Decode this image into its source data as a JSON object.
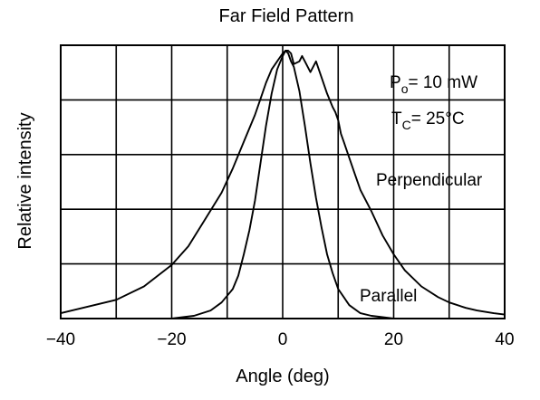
{
  "chart_data": {
    "type": "line",
    "title": "Far Field Pattern",
    "xlabel": "Angle (deg)",
    "ylabel": "Relative intensity",
    "xlim": [
      -40,
      40
    ],
    "ylim": [
      0,
      1.0
    ],
    "x_ticks": [
      -40,
      -20,
      0,
      20,
      40
    ],
    "x_tick_labels": [
      "−40",
      "−20",
      "0",
      "20",
      "40"
    ],
    "grid": true,
    "annotations": {
      "power_symbol": "P",
      "power_subscript": "o",
      "power_value": "= 10 mW",
      "temp_symbol": "T",
      "temp_subscript": "C",
      "temp_value": "= 25°C"
    },
    "series": [
      {
        "name": "Perpendicular",
        "x": [
          -40,
          -35,
          -30,
          -25,
          -20,
          -17,
          -14,
          -11,
          -9,
          -7,
          -5,
          -4,
          -3,
          -2,
          -1,
          0,
          0.5,
          1,
          1.5,
          2,
          3,
          3.5,
          4,
          5,
          6,
          7,
          8,
          9,
          9.5,
          10,
          10.5,
          11,
          12,
          13,
          14,
          16,
          18,
          20,
          22,
          25,
          28,
          30,
          33,
          35,
          38,
          40
        ],
        "y": [
          0.02,
          0.045,
          0.07,
          0.12,
          0.2,
          0.27,
          0.37,
          0.47,
          0.56,
          0.66,
          0.76,
          0.82,
          0.88,
          0.93,
          0.96,
          0.99,
          1.0,
          1.0,
          0.99,
          0.95,
          0.96,
          0.98,
          0.96,
          0.92,
          0.96,
          0.9,
          0.84,
          0.79,
          0.77,
          0.74,
          0.69,
          0.66,
          0.6,
          0.54,
          0.48,
          0.4,
          0.31,
          0.24,
          0.18,
          0.12,
          0.08,
          0.06,
          0.04,
          0.03,
          0.02,
          0.015
        ]
      },
      {
        "name": "Parallel",
        "x": [
          -40,
          -30,
          -25,
          -20,
          -16,
          -13,
          -11,
          -9,
          -8,
          -7,
          -6,
          -5,
          -4,
          -3,
          -2,
          -1,
          0,
          0.5,
          1,
          1.5,
          2,
          3,
          4,
          5,
          6,
          7,
          8,
          9,
          10,
          12,
          14,
          16,
          20,
          25,
          30,
          40
        ],
        "y": [
          0.0,
          0.0,
          0.0,
          0.0,
          0.01,
          0.03,
          0.06,
          0.11,
          0.16,
          0.24,
          0.33,
          0.44,
          0.58,
          0.72,
          0.84,
          0.93,
          0.98,
          1.0,
          0.99,
          0.96,
          0.94,
          0.85,
          0.72,
          0.58,
          0.45,
          0.34,
          0.24,
          0.17,
          0.11,
          0.05,
          0.02,
          0.01,
          0.0,
          0.0,
          0.0,
          0.0
        ]
      }
    ]
  }
}
